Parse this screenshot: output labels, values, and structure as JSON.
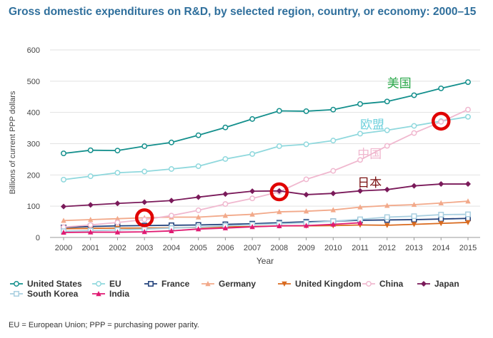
{
  "title": "Gross domestic expenditures on R&D, by selected region, country, or economy: 2000–15",
  "footnote": "EU = European Union; PPP = purchasing power parity.",
  "chart_data": {
    "type": "line",
    "xlabel": "Year",
    "ylabel": "Billions of current PPP dollars",
    "ylim": [
      0,
      600
    ],
    "yticks": [
      0,
      100,
      200,
      300,
      400,
      500,
      600
    ],
    "x": [
      2000,
      2001,
      2002,
      2003,
      2004,
      2005,
      2006,
      2007,
      2008,
      2009,
      2010,
      2011,
      2012,
      2013,
      2014,
      2015
    ],
    "grid": "horizontal",
    "legend_position": "bottom",
    "series": [
      {
        "name": "United States",
        "color": "#138f8c",
        "marker": "circle-open",
        "values": [
          269,
          279,
          278,
          292,
          304,
          327,
          352,
          379,
          405,
          404,
          409,
          427,
          435,
          455,
          477,
          497
        ]
      },
      {
        "name": "EU",
        "color": "#8fd8dd",
        "marker": "circle-open",
        "values": [
          185,
          196,
          207,
          211,
          219,
          228,
          251,
          267,
          292,
          298,
          310,
          332,
          343,
          357,
          372,
          386
        ]
      },
      {
        "name": "France",
        "color": "#1f3f7a",
        "marker": "square-open",
        "values": [
          32,
          35,
          37,
          38,
          39,
          40,
          42,
          44,
          47,
          50,
          52,
          55,
          56,
          57,
          59,
          61
        ]
      },
      {
        "name": "Germany",
        "color": "#f2a98a",
        "marker": "triangle",
        "values": [
          54,
          57,
          60,
          63,
          65,
          65,
          70,
          74,
          82,
          84,
          88,
          97,
          102,
          105,
          110,
          116
        ]
      },
      {
        "name": "United Kingdom",
        "color": "#d96a1e",
        "marker": "triangle-down",
        "values": [
          28,
          29,
          30,
          30,
          31,
          32,
          34,
          35,
          37,
          37,
          38,
          40,
          39,
          42,
          45,
          48
        ]
      },
      {
        "name": "China",
        "color": "#f0b8cf",
        "marker": "circle-open",
        "values": [
          33,
          40,
          48,
          57,
          70,
          87,
          107,
          125,
          146,
          186,
          213,
          248,
          293,
          334,
          370,
          409
        ]
      },
      {
        "name": "Japan",
        "color": "#7a1a5a",
        "marker": "diamond",
        "values": [
          99,
          104,
          109,
          113,
          118,
          129,
          139,
          148,
          149,
          137,
          141,
          149,
          153,
          165,
          171,
          171
        ]
      },
      {
        "name": "South Korea",
        "color": "#a9cfe0",
        "marker": "square-open",
        "values": [
          20,
          22,
          24,
          27,
          30,
          33,
          37,
          41,
          44,
          47,
          52,
          58,
          65,
          68,
          73,
          74
        ]
      },
      {
        "name": "India",
        "color": "#e01a72",
        "marker": "triangle",
        "values": [
          16,
          17,
          17,
          18,
          21,
          27,
          30,
          34,
          37,
          38,
          42,
          47,
          0,
          0,
          0,
          0
        ],
        "last_index": 11
      }
    ],
    "annotations": [
      {
        "text": "美国",
        "color": "#2aa84a",
        "anchor_year": 2012,
        "anchor_value": 480
      },
      {
        "text": "欧盟",
        "color": "#6cd0dc",
        "anchor_year": 2011,
        "anchor_value": 348
      },
      {
        "text": "中国",
        "color": "#f0b8cf",
        "anchor_year": 2010.9,
        "anchor_value": 254
      },
      {
        "text": "日本",
        "color": "#7a1010",
        "anchor_year": 2010.9,
        "anchor_value": 162
      }
    ],
    "highlight_circles": [
      {
        "year": 2003,
        "value": 63,
        "color": "#e00000"
      },
      {
        "year": 2008,
        "value": 146,
        "color": "#e00000"
      },
      {
        "year": 2014,
        "value": 372,
        "color": "#e00000"
      }
    ]
  }
}
